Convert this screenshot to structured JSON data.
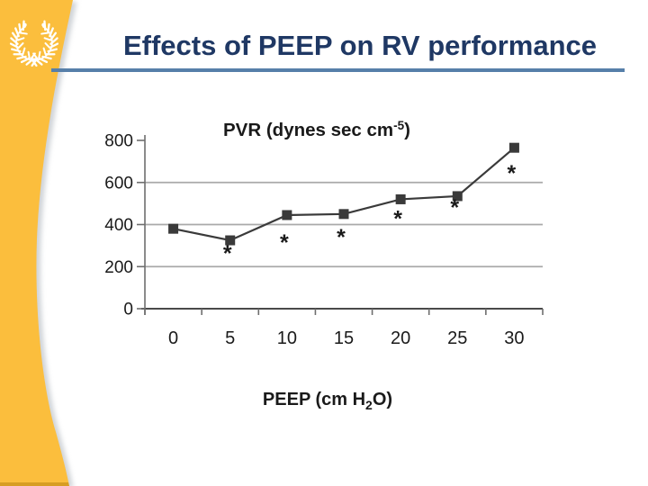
{
  "slide": {
    "title": "Effects of PEEP on RV performance",
    "title_color": "#1F3864",
    "underline_color": "#567FA9",
    "sidebar_color": "#FBBE3D",
    "sidebar_shadow_color": "#A9B0B8",
    "logo_icon": "laurel-wreath-icon",
    "logo_color": "#FFFFFF"
  },
  "chart_data": {
    "type": "line",
    "title": "PVR (dynes sec cm-5)",
    "title_parts": {
      "pre": "PVR (dynes sec cm",
      "sup": "-5",
      "post": ")"
    },
    "xlabel": "PEEP (cm H2O)",
    "xlabel_parts": {
      "pre": "PEEP (cm H",
      "sub": "2",
      "post": "O)"
    },
    "ylabel": "",
    "x": [
      0,
      5,
      10,
      15,
      20,
      25,
      30
    ],
    "values": [
      380,
      325,
      445,
      450,
      520,
      535,
      765
    ],
    "significant": [
      false,
      true,
      true,
      true,
      true,
      true,
      true
    ],
    "significance_symbol": "*",
    "ylim": [
      0,
      800
    ],
    "yticks": [
      0,
      200,
      400,
      600,
      800
    ],
    "gridlines": [
      200,
      400,
      600
    ],
    "grid_on": true,
    "legend": "none",
    "marker": "square",
    "series_color": "#3a3a3a",
    "grid_color": "#aaaaaa",
    "axis_color": "#4a4a4a",
    "label_color": "#1a1a1a"
  }
}
